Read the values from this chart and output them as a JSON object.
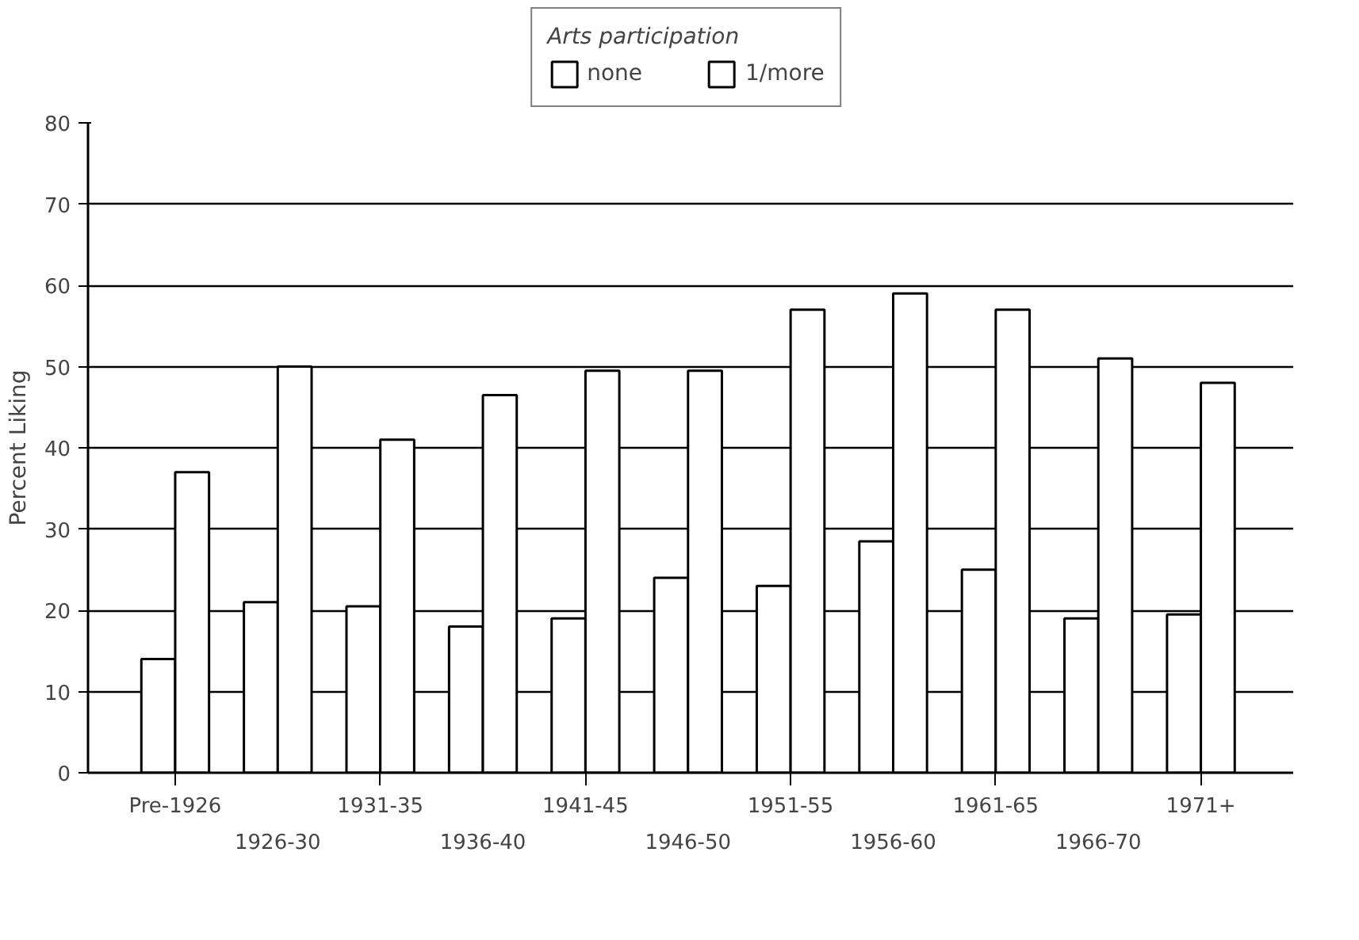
{
  "chart_data": {
    "type": "bar",
    "ylabel": "Percent Liking",
    "legend_title": "Arts participation",
    "categories": [
      "Pre-1926",
      "1926-30",
      "1931-35",
      "1936-40",
      "1941-45",
      "1946-50",
      "1951-55",
      "1956-60",
      "1961-65",
      "1966-70",
      "1971+"
    ],
    "series": [
      {
        "name": "none",
        "color": "#ffffff",
        "values": [
          14,
          21,
          20.5,
          18,
          19,
          24,
          23,
          28.5,
          25,
          19,
          19.5
        ]
      },
      {
        "name": "1/more",
        "color": "#ffffff",
        "values": [
          37,
          50,
          41,
          46.5,
          49.5,
          49.5,
          57,
          59,
          57,
          51,
          48
        ]
      }
    ],
    "ylim": [
      0,
      80
    ],
    "yticks": [
      0,
      10,
      20,
      30,
      40,
      50,
      60,
      70,
      80
    ],
    "grid": "y",
    "legend": "top"
  }
}
